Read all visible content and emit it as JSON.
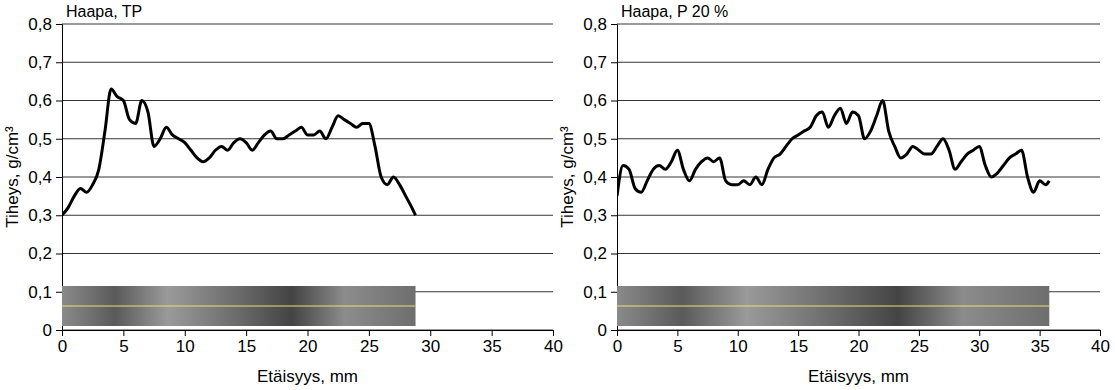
{
  "chart_data": [
    {
      "type": "line",
      "title": "Haapa, TP",
      "x_label": "Etäisyys, mm",
      "y_label": "Tiheys, g/cm³",
      "x": [
        0,
        0.5,
        1,
        1.5,
        2,
        2.5,
        3,
        3.5,
        4,
        4.5,
        5,
        5.5,
        6,
        6.5,
        7,
        7.5,
        8,
        8.5,
        9,
        9.5,
        10,
        10.5,
        11,
        11.5,
        12,
        12.5,
        13,
        13.5,
        14,
        14.5,
        15,
        15.5,
        16,
        16.5,
        17,
        17.5,
        18,
        18.5,
        19,
        19.5,
        20,
        20.5,
        21,
        21.5,
        22,
        22.5,
        23,
        23.5,
        24,
        24.5,
        25,
        25.5,
        26,
        26.5,
        27,
        27.5,
        28,
        28.5,
        28.8
      ],
      "values": [
        0.3,
        0.32,
        0.35,
        0.37,
        0.36,
        0.38,
        0.42,
        0.52,
        0.63,
        0.61,
        0.6,
        0.55,
        0.54,
        0.6,
        0.57,
        0.48,
        0.5,
        0.53,
        0.51,
        0.5,
        0.49,
        0.47,
        0.45,
        0.44,
        0.45,
        0.47,
        0.48,
        0.47,
        0.49,
        0.5,
        0.49,
        0.47,
        0.49,
        0.51,
        0.52,
        0.5,
        0.5,
        0.51,
        0.52,
        0.53,
        0.51,
        0.51,
        0.52,
        0.5,
        0.53,
        0.56,
        0.55,
        0.54,
        0.53,
        0.54,
        0.54,
        0.48,
        0.4,
        0.38,
        0.4,
        0.38,
        0.35,
        0.32,
        0.3
      ],
      "color": "#000000",
      "xlim": [
        0,
        40
      ],
      "xticks": [
        0,
        5,
        10,
        15,
        20,
        25,
        30,
        35,
        40
      ],
      "ylim": [
        0,
        0.8
      ],
      "yticks": [
        0,
        {
          "value": 0.1,
          "label": "0,1"
        },
        {
          "value": 0.2,
          "label": "0,2"
        },
        {
          "value": 0.3,
          "label": "0,3"
        },
        {
          "value": 0.4,
          "label": "0,4"
        },
        {
          "value": 0.5,
          "label": "0,5"
        },
        {
          "value": 0.6,
          "label": "0,6"
        },
        {
          "value": 0.7,
          "label": "0,7"
        },
        {
          "value": 0.8,
          "label": "0,8"
        }
      ],
      "grid": true
    },
    {
      "type": "line",
      "title": "Haapa, P 20 %",
      "x_label": "Etäisyys, mm",
      "y_label": "Tiheys, g/cm³",
      "x": [
        0,
        0.5,
        1,
        1.5,
        2,
        2.5,
        3,
        3.5,
        4,
        4.5,
        5,
        5.5,
        6,
        6.5,
        7,
        7.5,
        8,
        8.5,
        9,
        9.5,
        10,
        10.5,
        11,
        11.5,
        12,
        12.5,
        13,
        13.5,
        14,
        14.5,
        15,
        15.5,
        16,
        16.5,
        17,
        17.5,
        18,
        18.5,
        19,
        19.5,
        20,
        20.5,
        21,
        21.5,
        22,
        22.5,
        23,
        23.5,
        24,
        24.5,
        25,
        25.5,
        26,
        26.5,
        27,
        27.5,
        28,
        28.5,
        29,
        29.5,
        30,
        30.5,
        31,
        31.5,
        32,
        32.5,
        33,
        33.5,
        34,
        34.5,
        35,
        35.5,
        35.8
      ],
      "values": [
        0.35,
        0.43,
        0.42,
        0.37,
        0.36,
        0.39,
        0.42,
        0.43,
        0.42,
        0.44,
        0.47,
        0.42,
        0.39,
        0.42,
        0.44,
        0.45,
        0.44,
        0.45,
        0.39,
        0.38,
        0.38,
        0.39,
        0.38,
        0.4,
        0.38,
        0.42,
        0.45,
        0.46,
        0.48,
        0.5,
        0.51,
        0.52,
        0.53,
        0.56,
        0.57,
        0.53,
        0.56,
        0.58,
        0.54,
        0.57,
        0.56,
        0.5,
        0.52,
        0.56,
        0.6,
        0.52,
        0.48,
        0.45,
        0.46,
        0.48,
        0.47,
        0.46,
        0.46,
        0.48,
        0.5,
        0.47,
        0.42,
        0.44,
        0.46,
        0.47,
        0.48,
        0.43,
        0.4,
        0.41,
        0.43,
        0.45,
        0.46,
        0.47,
        0.4,
        0.36,
        0.39,
        0.38,
        0.39
      ],
      "color": "#000000",
      "xlim": [
        0,
        40
      ],
      "xticks": [
        0,
        5,
        10,
        15,
        20,
        25,
        30,
        35,
        40
      ],
      "ylim": [
        0,
        0.8
      ],
      "yticks": [
        0,
        {
          "value": 0.1,
          "label": "0,1"
        },
        {
          "value": 0.2,
          "label": "0,2"
        },
        {
          "value": 0.3,
          "label": "0,3"
        },
        {
          "value": 0.4,
          "label": "0,4"
        },
        {
          "value": 0.5,
          "label": "0,5"
        },
        {
          "value": 0.6,
          "label": "0,6"
        },
        {
          "value": 0.7,
          "label": "0,7"
        },
        {
          "value": 0.8,
          "label": "0,8"
        }
      ],
      "grid": true
    }
  ]
}
